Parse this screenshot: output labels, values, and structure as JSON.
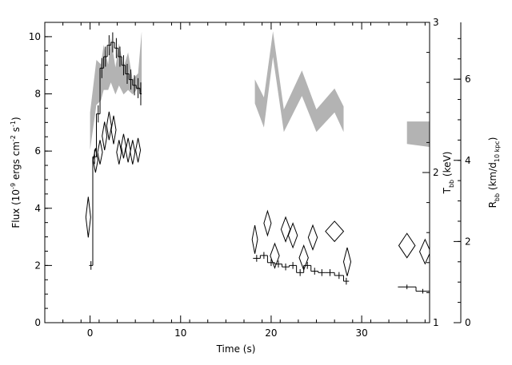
{
  "chart_data": {
    "type": "scatter",
    "xlabel": "Time (s)",
    "ylabel_left": {
      "main": "Flux (10",
      "exp1": "-9",
      "mid": " ergs cm",
      "exp2": "-2",
      "mid2": " s",
      "exp3": "-1",
      "end": ")"
    },
    "ylabel_right1": {
      "main": "T",
      "sub": "bb",
      "end": " (keV)"
    },
    "ylabel_right2": {
      "main": "R",
      "sub": "bb",
      "mid": " (km/d",
      "sub2": "10 kpc",
      "end": ")"
    },
    "xlim": [
      -5,
      37.5
    ],
    "ylim_flux": [
      0,
      10.5
    ],
    "ylim_T": [
      1,
      3
    ],
    "ylim_R": [
      0,
      7.4
    ],
    "x_ticks": [
      {
        "v": 0,
        "label": "0"
      },
      {
        "v": 10,
        "label": "10"
      },
      {
        "v": 20,
        "label": "20"
      },
      {
        "v": 30,
        "label": "30"
      }
    ],
    "flux_ticks": [
      {
        "v": 0,
        "label": "0"
      },
      {
        "v": 2,
        "label": "2"
      },
      {
        "v": 4,
        "label": "4"
      },
      {
        "v": 6,
        "label": "6"
      },
      {
        "v": 8,
        "label": "8"
      },
      {
        "v": 10,
        "label": "10"
      }
    ],
    "T_ticks": [
      {
        "v": 1,
        "label": "1"
      },
      {
        "v": 2,
        "label": "2"
      },
      {
        "v": 3,
        "label": "3"
      }
    ],
    "R_ticks": [
      {
        "v": 0,
        "label": "0"
      },
      {
        "v": 2,
        "label": "2"
      },
      {
        "v": 4,
        "label": "4"
      },
      {
        "v": 6,
        "label": "6"
      }
    ],
    "series": [
      {
        "role": "flux_histogram",
        "axis": "flux",
        "points": [
          [
            -0.1,
            0.3,
            2.0,
            0.15
          ],
          [
            0.3,
            0.7,
            5.8,
            0.25
          ],
          [
            0.7,
            1.1,
            7.3,
            0.3
          ],
          [
            1.1,
            1.5,
            8.9,
            0.35
          ],
          [
            1.5,
            1.9,
            9.3,
            0.35
          ],
          [
            1.9,
            2.3,
            9.7,
            0.35
          ],
          [
            2.3,
            2.7,
            9.8,
            0.35
          ],
          [
            2.7,
            3.1,
            9.6,
            0.35
          ],
          [
            3.1,
            3.5,
            9.3,
            0.35
          ],
          [
            3.5,
            3.9,
            9.0,
            0.35
          ],
          [
            3.9,
            4.3,
            8.7,
            0.35
          ],
          [
            4.3,
            4.7,
            8.5,
            0.35
          ],
          [
            4.7,
            5.1,
            8.3,
            0.35
          ],
          [
            5.1,
            5.5,
            8.2,
            0.35
          ],
          [
            5.5,
            5.7,
            8.0,
            0.4
          ],
          [
            18.0,
            18.8,
            2.25,
            0.12
          ],
          [
            18.8,
            19.6,
            2.35,
            0.12
          ],
          [
            19.6,
            20.4,
            2.1,
            0.12
          ],
          [
            20.4,
            21.2,
            2.05,
            0.12
          ],
          [
            21.2,
            22.0,
            1.95,
            0.12
          ],
          [
            22.0,
            22.8,
            2.0,
            0.12
          ],
          [
            22.8,
            23.6,
            1.75,
            0.12
          ],
          [
            23.6,
            24.4,
            2.0,
            0.12
          ],
          [
            24.4,
            25.2,
            1.8,
            0.12
          ],
          [
            25.2,
            26.0,
            1.75,
            0.12
          ],
          [
            26.0,
            27.0,
            1.75,
            0.12
          ],
          [
            27.0,
            28.0,
            1.65,
            0.12
          ],
          [
            28.0,
            28.6,
            1.45,
            0.12
          ],
          [
            34.0,
            36.0,
            1.25,
            0.08
          ],
          [
            36.0,
            37.5,
            1.1,
            0.08
          ]
        ]
      },
      {
        "role": "temperature_band",
        "axis": "T",
        "segments": [
          {
            "upper": [
              [
                0.0,
                2.4
              ],
              [
                0.7,
                2.75
              ],
              [
                1.2,
                2.72
              ],
              [
                1.5,
                2.85
              ],
              [
                2.0,
                2.72
              ],
              [
                2.3,
                2.9
              ],
              [
                2.8,
                2.7
              ],
              [
                3.2,
                2.86
              ],
              [
                3.7,
                2.7
              ],
              [
                4.2,
                2.8
              ],
              [
                4.7,
                2.62
              ],
              [
                5.3,
                2.66
              ],
              [
                5.7,
                2.94
              ]
            ],
            "lower": [
              [
                5.7,
                2.52
              ],
              [
                5.3,
                2.56
              ],
              [
                4.7,
                2.52
              ],
              [
                4.2,
                2.55
              ],
              [
                3.7,
                2.52
              ],
              [
                3.2,
                2.58
              ],
              [
                2.8,
                2.52
              ],
              [
                2.3,
                2.6
              ],
              [
                2.0,
                2.55
              ],
              [
                1.5,
                2.55
              ],
              [
                1.2,
                2.48
              ],
              [
                0.7,
                2.45
              ],
              [
                0.0,
                2.15
              ]
            ]
          },
          {
            "upper": [
              [
                18.2,
                2.62
              ],
              [
                19.2,
                2.5
              ],
              [
                20.2,
                2.94
              ],
              [
                21.4,
                2.42
              ],
              [
                23.4,
                2.68
              ],
              [
                25.0,
                2.42
              ],
              [
                27.0,
                2.56
              ],
              [
                28.0,
                2.44
              ]
            ],
            "lower": [
              [
                28.0,
                2.27
              ],
              [
                27.0,
                2.4
              ],
              [
                25.0,
                2.27
              ],
              [
                23.4,
                2.51
              ],
              [
                21.4,
                2.27
              ],
              [
                20.2,
                2.77
              ],
              [
                19.2,
                2.3
              ],
              [
                18.2,
                2.46
              ]
            ]
          },
          {
            "upper": [
              [
                35.0,
                2.34
              ],
              [
                37.5,
                2.34
              ]
            ],
            "lower": [
              [
                37.5,
                2.17
              ],
              [
                35.0,
                2.19
              ]
            ]
          }
        ]
      },
      {
        "role": "radius_points",
        "axis": "R",
        "points": [
          [
            -0.2,
            2.6,
            0.2,
            0.5
          ],
          [
            0.6,
            4.0,
            0.2,
            0.3
          ],
          [
            1.1,
            4.2,
            0.2,
            0.3
          ],
          [
            1.6,
            4.6,
            0.2,
            0.35
          ],
          [
            2.1,
            4.85,
            0.2,
            0.35
          ],
          [
            2.6,
            4.75,
            0.2,
            0.35
          ],
          [
            3.2,
            4.2,
            0.2,
            0.3
          ],
          [
            3.7,
            4.35,
            0.2,
            0.3
          ],
          [
            4.2,
            4.25,
            0.2,
            0.3
          ],
          [
            4.7,
            4.2,
            0.2,
            0.3
          ],
          [
            5.3,
            4.25,
            0.2,
            0.3
          ],
          [
            18.2,
            2.05,
            0.3,
            0.35
          ],
          [
            19.6,
            2.45,
            0.4,
            0.3
          ],
          [
            20.4,
            1.65,
            0.5,
            0.3
          ],
          [
            21.6,
            2.3,
            0.5,
            0.3
          ],
          [
            22.4,
            2.15,
            0.5,
            0.3
          ],
          [
            23.6,
            1.6,
            0.5,
            0.3
          ],
          [
            24.6,
            2.1,
            0.5,
            0.3
          ],
          [
            27.0,
            2.25,
            1.0,
            0.25
          ],
          [
            28.4,
            1.5,
            0.4,
            0.35
          ],
          [
            35.0,
            1.9,
            0.9,
            0.3
          ],
          [
            37.0,
            1.75,
            0.6,
            0.3
          ]
        ]
      }
    ],
    "colors": {
      "axes": "#000000",
      "band": "#b3b3b3",
      "markers": "#000000"
    }
  }
}
